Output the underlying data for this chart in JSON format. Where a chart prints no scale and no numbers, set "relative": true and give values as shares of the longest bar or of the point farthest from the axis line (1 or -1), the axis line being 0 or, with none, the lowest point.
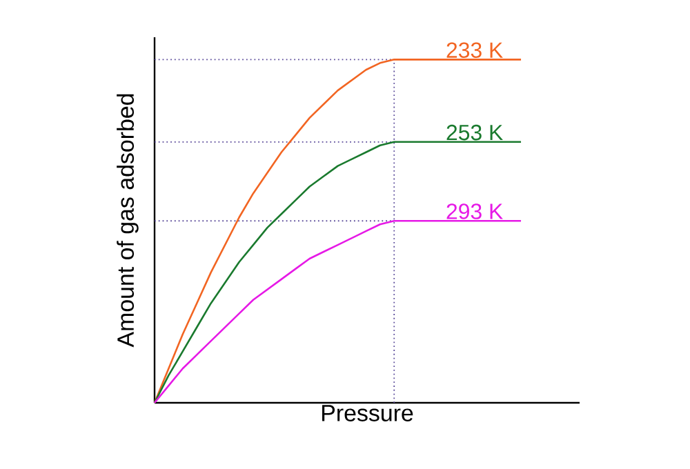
{
  "chart_data": {
    "type": "line",
    "xlabel": "Pressure",
    "ylabel": "Amount of gas adsorbed",
    "relative": true,
    "marker": "none",
    "line_style": "solid",
    "categories": [
      null,
      null,
      null,
      null,
      null,
      null,
      null,
      null,
      null,
      null,
      null,
      null,
      null,
      null,
      null,
      null,
      null,
      null,
      null,
      null,
      null,
      null,
      null,
      null,
      null,
      null,
      null
    ],
    "series": [
      {
        "name": "233 K",
        "color": "#f26522",
        "values": [
          0,
          0.1,
          0.2,
          0.29,
          0.38,
          0.46,
          0.54,
          0.61,
          0.67,
          0.73,
          0.78,
          0.83,
          0.87,
          0.91,
          0.94,
          0.97,
          0.99,
          1,
          1,
          1,
          1,
          1,
          1,
          1,
          1,
          1,
          1
        ]
      },
      {
        "name": "253 K",
        "color": "#1a7a2e",
        "values": [
          0,
          0.08,
          0.15,
          0.22,
          0.29,
          0.35,
          0.41,
          0.46,
          0.51,
          0.55,
          0.59,
          0.63,
          0.66,
          0.69,
          0.71,
          0.73,
          0.75,
          0.76,
          0.76,
          0.76,
          0.76,
          0.76,
          0.76,
          0.76,
          0.76,
          0.76,
          0.76
        ]
      },
      {
        "name": "293 K",
        "color": "#e619e6",
        "values": [
          0,
          0.05,
          0.1,
          0.14,
          0.18,
          0.22,
          0.26,
          0.3,
          0.33,
          0.36,
          0.39,
          0.42,
          0.44,
          0.46,
          0.48,
          0.5,
          0.52,
          0.53,
          0.53,
          0.53,
          0.53,
          0.53,
          0.53,
          0.53,
          0.53,
          0.53,
          0.53
        ]
      }
    ],
    "ref_lines": [
      {
        "axis": "y",
        "value": 1,
        "color": "#5b4b9a",
        "line_style": "dotted"
      },
      {
        "axis": "y",
        "value": 0.76,
        "color": "#5b4b9a",
        "line_style": "dotted"
      },
      {
        "axis": "y",
        "value": 0.53,
        "color": "#5b4b9a",
        "line_style": "dotted"
      }
    ]
  }
}
